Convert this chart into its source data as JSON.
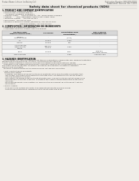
{
  "page_bg": "#f0ede8",
  "header_left": "Product Name: Lithium Ion Battery Cell",
  "header_right_line1": "Publication Number: SRS-SDS-00010",
  "header_right_line2": "Established / Revision: Dec.7.2010",
  "main_title": "Safety data sheet for chemical products (SDS)",
  "section1_title": "1. PRODUCT AND COMPANY IDENTIFICATION",
  "s1_lines": [
    "  • Product name: Lithium Ion Battery Cell",
    "  • Product code: Cylindrical-type cell",
    "       (SV-B6500, (SV-B6500, SV-B6500A)",
    "  • Company name:      Sanyo Electric Co., Ltd.  Mobile Energy Company",
    "  • Address:         2221  Kaminaizen, Sumoto City, Hyogo, Japan",
    "  • Telephone number:    +81-799-26-4111",
    "  • Fax number:  +81-799-26-4120",
    "  • Emergency telephone number (Weekdays): +81-799-26-3962",
    "                                  (Night and holiday): +81-799-26-3101"
  ],
  "section2_title": "2. COMPOSITION / INFORMATION ON INGREDIENTS",
  "s2_lines": [
    "  • Substance or preparation: Preparation",
    "  • Information about the chemical nature of product:"
  ],
  "table_headers": [
    "Common chemical name /\nSubstance name",
    "CAS number",
    "Concentration /\nConcentration range",
    "Classification and\nhazard labeling"
  ],
  "table_rows": [
    [
      "Lithium cobalt oxide\n(LiMnCoO2)",
      "-",
      "[30-60%]",
      "-"
    ],
    [
      "Iron",
      "7439-89-6",
      "15-25%",
      "-"
    ],
    [
      "Aluminum",
      "7429-90-5",
      "2-8%",
      "-"
    ],
    [
      "Graphite\n(Natural graphite)\n(Artificial graphite)",
      "7782-42-5\n(7782-42-5)",
      "10-25%",
      "-"
    ],
    [
      "Copper",
      "7440-50-8",
      "5-15%",
      "Sensitization of the skin\ngroup No.2"
    ],
    [
      "Organic electrolyte",
      "-",
      "10-20%",
      "Inflammable liquid"
    ]
  ],
  "section3_title": "3. HAZARDS IDENTIFICATION",
  "s3_text": [
    "   For this battery cell, chemical substances are stored in a hermetically sealed metal case, designed to withstand",
    "temperatures during normal use. As a result, during normal use, there is no",
    "physical danger of ignition or explosion and there is no danger of hazardous materials leakage.",
    "   If exposed to a fire, added mechanical shocks, decompose, when electric current abnormality occurs, fire",
    "gas release cannot be operated. The battery cell case will be breached or fire patterns, hazardous",
    "materials may be released.",
    "   Moreover, if heated strongly by the surrounding fire, soot gas may be emitted.",
    "",
    "  • Most important hazard and effects:",
    "    Human health effects:",
    "      Inhalation: The release of the electrolyte has an anesthetic action and stimulates a respiratory tract.",
    "      Skin contact: The release of the electrolyte stimulates a skin. The electrolyte skin contact causes a",
    "      sore and stimulation on the skin.",
    "      Eye contact: The release of the electrolyte stimulates eyes. The electrolyte eye contact causes a sore",
    "      and stimulation on the eye. Especially, a substance that causes a strong inflammation of the eyes is",
    "      contained.",
    "      Environmental effects: Since a battery cell remains in the environment, do not throw out it into the",
    "      environment.",
    "",
    "  • Specific hazards:",
    "      If the electrolyte contacts with water, it will generate detrimental hydrogen fluoride.",
    "      Since the used electrolyte is inflammable liquid, do not bring close to fire."
  ]
}
